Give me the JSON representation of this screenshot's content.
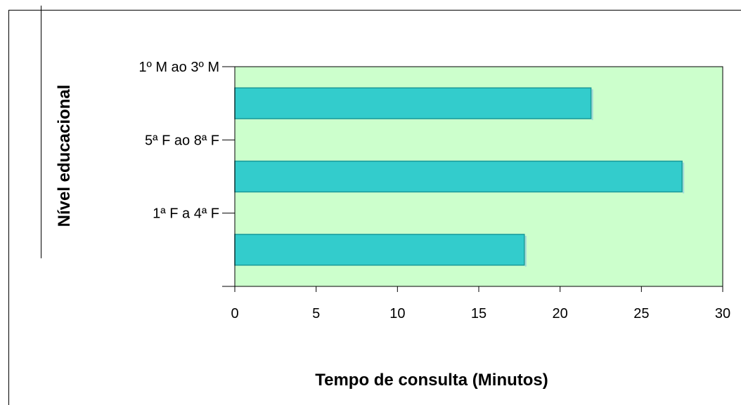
{
  "chart_data": {
    "type": "bar",
    "orientation": "horizontal",
    "categories": [
      "1ª F a 4ª F",
      "5ª F ao 8ª F",
      "1º M ao 3º M"
    ],
    "values": [
      17.8,
      27.5,
      21.9
    ],
    "xlabel": "Tempo de consulta (Minutos)",
    "ylabel": "Nível educacional",
    "xlim": [
      0,
      30
    ],
    "xticks": [
      "0",
      "5",
      "10",
      "15",
      "20",
      "25",
      "30"
    ],
    "grid": false,
    "colors": {
      "plot_background": "#ccffcc",
      "bar_fill": "#33cccc",
      "bar_edge": "#1a9999"
    }
  }
}
